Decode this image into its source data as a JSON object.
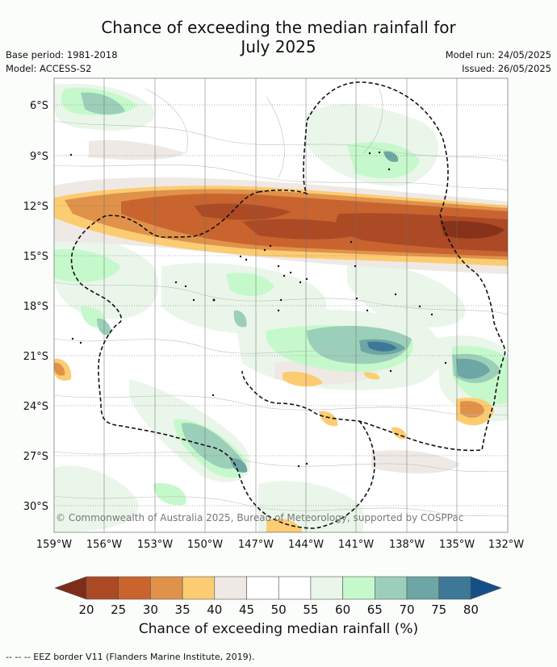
{
  "header": {
    "title_line1": "Chance of exceeding the median rainfall for",
    "title_line2": "July 2025",
    "base_period": "Base period: 1981-2018",
    "model": "Model: ACCESS-S2",
    "model_run": "Model run: 24/05/2025",
    "issued": "Issued: 26/05/2025"
  },
  "map": {
    "lat_ticks": [
      "6°S",
      "9°S",
      "12°S",
      "15°S",
      "18°S",
      "21°S",
      "24°S",
      "27°S",
      "30°S"
    ],
    "lon_ticks": [
      "159°W",
      "156°W",
      "153°W",
      "150°W",
      "147°W",
      "144°W",
      "141°W",
      "138°W",
      "135°W",
      "132°W"
    ],
    "credit": "© Commonwealth of Australia 2025, Bureau of Meteorology, supported by COSPPac"
  },
  "colorbar": {
    "ticks": [
      "20",
      "25",
      "30",
      "35",
      "40",
      "45",
      "50",
      "55",
      "60",
      "65",
      "70",
      "75",
      "80"
    ],
    "colors": [
      "#7e2d17",
      "#ac4a26",
      "#c9642f",
      "#e0924a",
      "#fccc73",
      "#efe9e6",
      "#ffffff",
      "#ffffff",
      "#eaf6ea",
      "#c5f9cb",
      "#9ccfb9",
      "#6da6a4",
      "#3e7897",
      "#164f86"
    ],
    "title": "Chance of exceeding median rainfall (%)"
  },
  "footer": {
    "legend": "-- -- -- EEZ border V11 (Flanders Marine Institute, 2019)."
  }
}
